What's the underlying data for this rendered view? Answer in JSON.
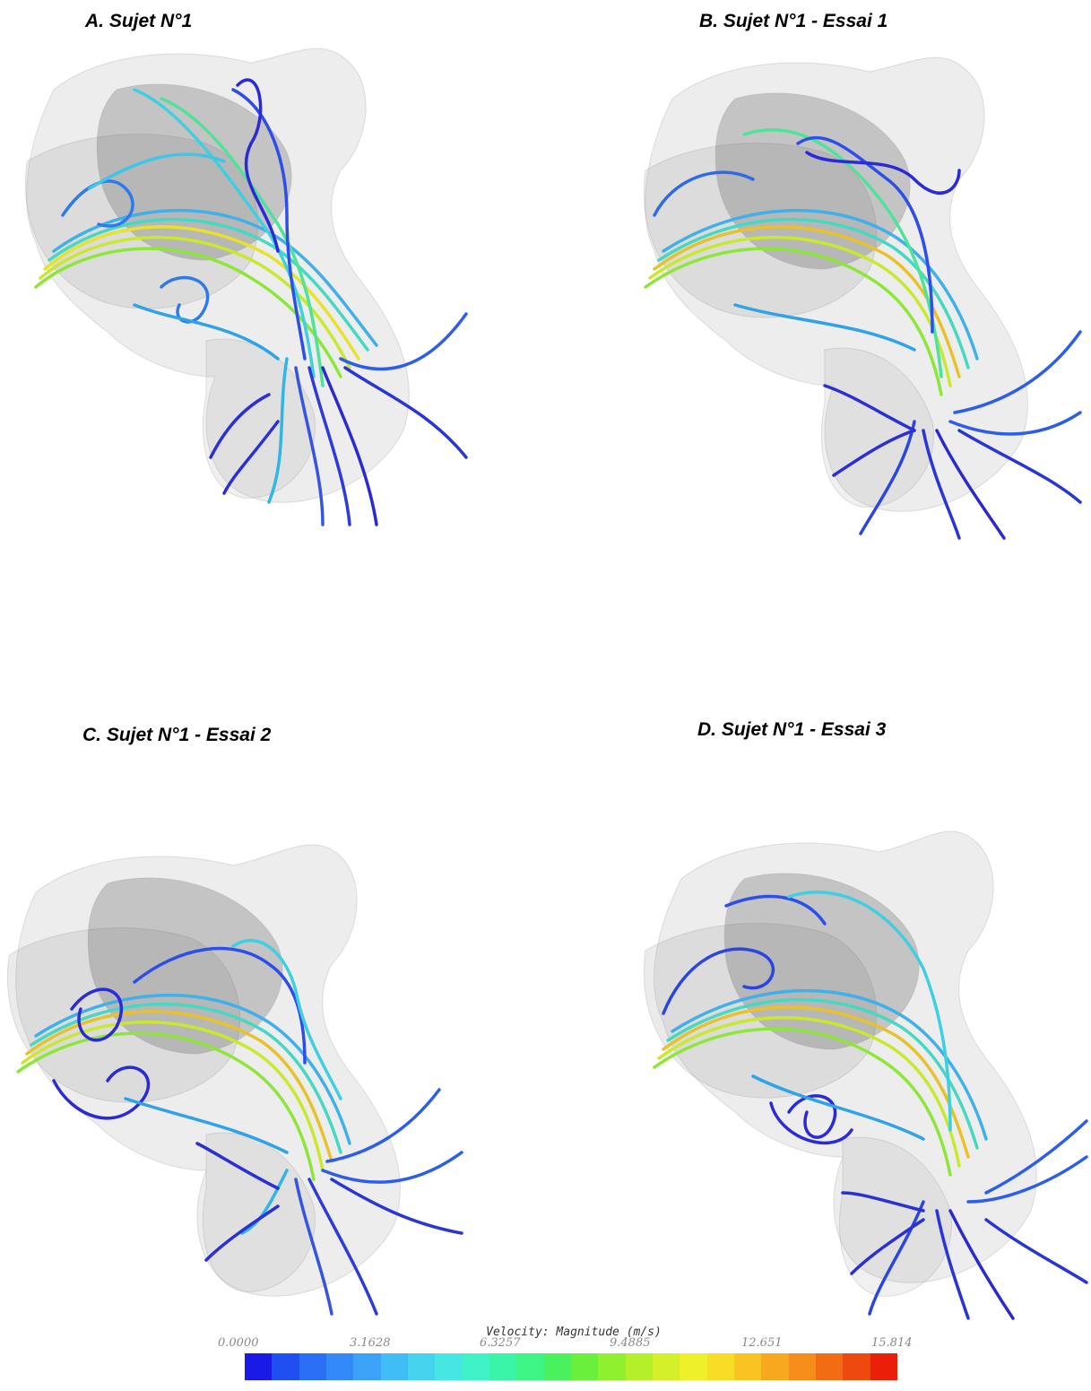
{
  "panels": [
    {
      "id": "A",
      "title": "A. Sujet N°1"
    },
    {
      "id": "B",
      "title": "B. Sujet N°1 - Essai 1"
    },
    {
      "id": "C",
      "title": "C. Sujet N°1 - Essai 2"
    },
    {
      "id": "D",
      "title": "D. Sujet N°1 - Essai 3"
    }
  ],
  "legend": {
    "title": "Velocity: Magnitude (m/s)",
    "ticks": [
      "0.0000",
      "3.1628",
      "6.3257",
      "9.4885",
      "12.651",
      "15.814"
    ],
    "colors": [
      "#1a1ae6",
      "#1f4ff0",
      "#2a6ef5",
      "#3389f7",
      "#3aa3f7",
      "#40bdf4",
      "#45d3ee",
      "#46e6e2",
      "#3ff2c8",
      "#3af5a8",
      "#3cf585",
      "#49f25c",
      "#6af03a",
      "#8ff02f",
      "#b3f02b",
      "#d3f02a",
      "#eef02a",
      "#f8dd27",
      "#f9c322",
      "#f8a81e",
      "#f68c19",
      "#f26c14",
      "#ee4a0f",
      "#ea1f0a"
    ]
  }
}
